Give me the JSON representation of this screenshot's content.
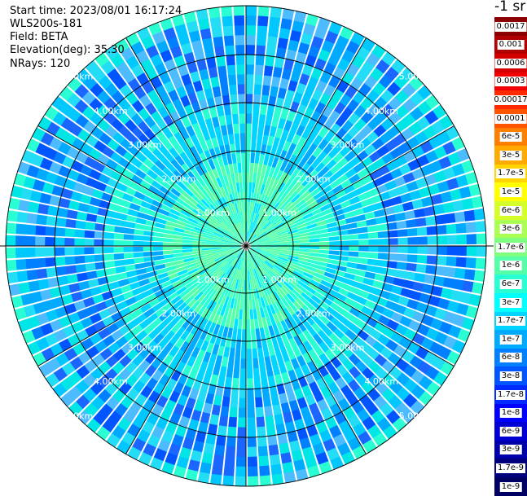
{
  "header": {
    "start_time": "Start time: 2023/08/01 16:17:24",
    "instrument": "WLS200s-181",
    "field": "Field: BETA",
    "elevation": "Elevation(deg): 35.30",
    "nrays": "NRays: 120"
  },
  "colorbar": {
    "unit_label": "-1 sr",
    "levels": [
      "0.0017",
      "0.001",
      "0.0006",
      "0.0003",
      "0.00017",
      "0.0001",
      "6e-5",
      "3e-5",
      "1.7e-5",
      "1e-5",
      "6e-6",
      "3e-6",
      "1.7e-6",
      "1e-6",
      "6e-7",
      "3e-7",
      "1.7e-7",
      "1e-7",
      "6e-8",
      "3e-8",
      "1.7e-8",
      "1e-8",
      "6e-9",
      "3e-9",
      "1.7e-9",
      "1e-9"
    ],
    "colors": [
      "#8b0000",
      "#b00000",
      "#d40000",
      "#f00000",
      "#ff2a00",
      "#ff5500",
      "#ff7f00",
      "#ffaa00",
      "#ffd400",
      "#ffff00",
      "#d4ff2a",
      "#aaff55",
      "#7fff7f",
      "#55ffaa",
      "#2affd4",
      "#00ffff",
      "#00d4ff",
      "#00aaff",
      "#007fff",
      "#0055ff",
      "#002aff",
      "#0000ff",
      "#0000d4",
      "#0000aa",
      "#00007f",
      "#000064"
    ]
  },
  "chart_data": {
    "type": "heatmap",
    "projection": "polar (PPI scan)",
    "field": "BETA",
    "n_rays": 120,
    "elevation_deg": 35.3,
    "range_ticks_km": [
      1.0,
      2.0,
      3.0,
      4.0,
      5.0
    ],
    "range_tick_labels": [
      "1.00km",
      "2.00km",
      "3.00km",
      "4.00km",
      "5.00km"
    ],
    "azimuth_lines_deg": [
      0,
      30,
      60,
      90,
      120,
      150,
      180,
      210,
      240,
      270,
      300,
      330
    ],
    "value_summary": "backscatter mostly 1e-7 to 1e-8 sr-1 (cyan/blue), higher (~1.7e-7) near center"
  }
}
